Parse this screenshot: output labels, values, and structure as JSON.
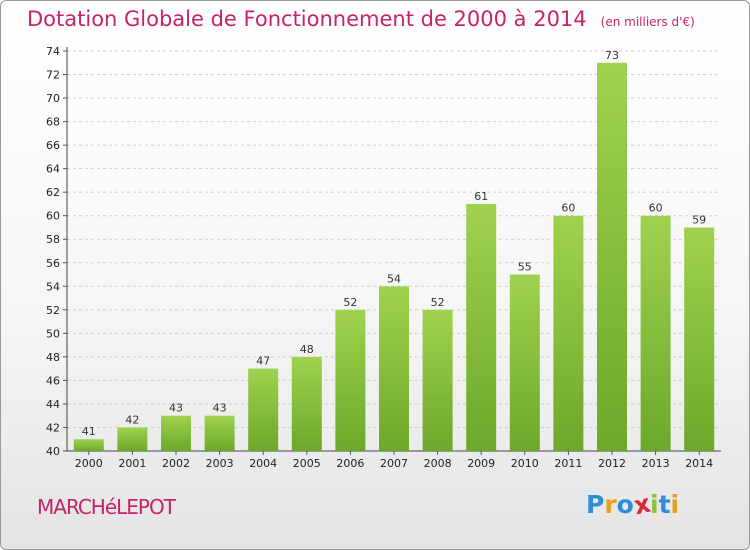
{
  "header": {
    "title": "Dotation Globale de Fonctionnement de 2000 à 2014",
    "subtitle": "(en milliers d'€)"
  },
  "footer": {
    "commune": "MARCHéLEPOT",
    "brand_letters": [
      {
        "char": "P",
        "color": "#2e8fd8"
      },
      {
        "char": "r",
        "color": "#e8a020"
      },
      {
        "char": "o",
        "color": "#2e8fd8"
      },
      {
        "char": "x",
        "color": "#d8283c"
      },
      {
        "char": "i",
        "color": "#8bc43a"
      },
      {
        "char": "t",
        "color": "#2e8fd8"
      },
      {
        "char": "i",
        "color": "#e8a020"
      }
    ]
  },
  "colors": {
    "bar_light": "#9fd24e",
    "bar_dark": "#6ca82a",
    "title": "#c8226a",
    "grid": "#cfcfcf"
  },
  "chart_data": {
    "type": "bar",
    "title": "Dotation Globale de Fonctionnement de 2000 à 2014",
    "subtitle": "(en milliers d'€)",
    "categories": [
      "2000",
      "2001",
      "2002",
      "2003",
      "2004",
      "2005",
      "2006",
      "2007",
      "2008",
      "2009",
      "2010",
      "2011",
      "2012",
      "2013",
      "2014"
    ],
    "values": [
      41,
      42,
      43,
      43,
      47,
      48,
      52,
      54,
      52,
      61,
      55,
      60,
      73,
      60,
      59
    ],
    "ylim": [
      40,
      74
    ],
    "yticks": [
      40,
      42,
      44,
      46,
      48,
      50,
      52,
      54,
      56,
      58,
      60,
      62,
      64,
      66,
      68,
      70,
      72,
      74
    ],
    "grid": "horizontal dashed",
    "legend": "none"
  }
}
